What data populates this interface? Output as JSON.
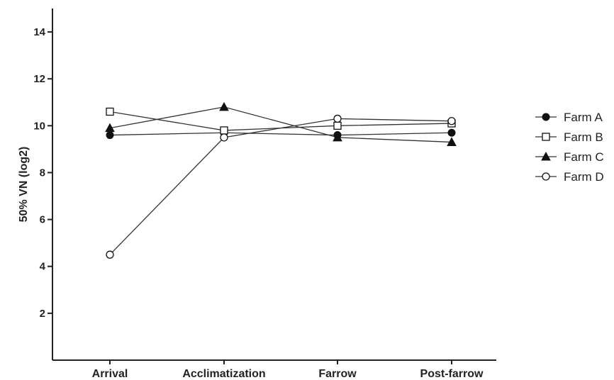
{
  "chart_data": {
    "type": "line",
    "title": "",
    "xlabel": "",
    "ylabel": "50% VN (log2)",
    "categories": [
      "Arrival",
      "Acclimatization",
      "Farrow",
      "Post-farrow"
    ],
    "ylim": [
      0,
      15
    ],
    "yticks": [
      2,
      4,
      6,
      8,
      10,
      12,
      14
    ],
    "grid": false,
    "legend_position": "right",
    "series": [
      {
        "name": "Farm A",
        "marker": "filled-circle",
        "values": [
          9.6,
          9.7,
          9.6,
          9.7
        ]
      },
      {
        "name": "Farm B",
        "marker": "open-square",
        "values": [
          10.6,
          9.8,
          10.0,
          10.1
        ]
      },
      {
        "name": "Farm C",
        "marker": "filled-triangle",
        "values": [
          9.9,
          10.8,
          9.5,
          9.3
        ]
      },
      {
        "name": "Farm D",
        "marker": "open-circle",
        "values": [
          4.5,
          9.5,
          10.3,
          10.2
        ]
      }
    ],
    "colors": {
      "line": "#333333",
      "marker": "#111111"
    }
  }
}
